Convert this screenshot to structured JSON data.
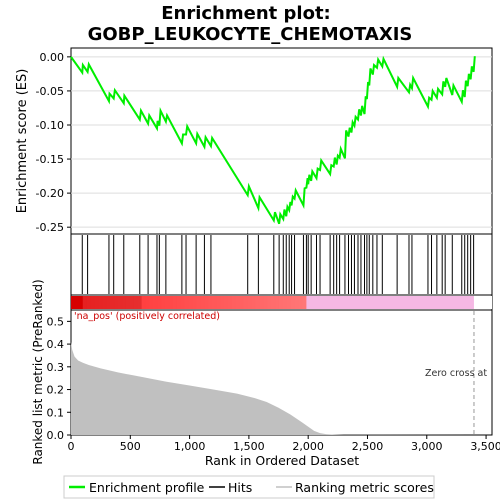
{
  "chart_data": {
    "type": "line",
    "title_line1": "Enrichment plot:",
    "title_line2": "GOBP_LEUKOCYTE_CHEMOTAXIS",
    "top_panel": {
      "ylabel": "Enrichment score (ES)",
      "ylim": [
        -0.26,
        0.013
      ],
      "yticks": [
        0.0,
        -0.05,
        -0.1,
        -0.15,
        -0.2,
        -0.25
      ],
      "ytick_labels": [
        "0.00",
        "-0.05",
        "-0.10",
        "-0.15",
        "-0.20",
        "-0.25"
      ],
      "line_color": "#00ee00",
      "series": {
        "name": "Enrichment profile",
        "x": [
          0,
          95,
          100,
          140,
          150,
          320,
          325,
          360,
          370,
          445,
          450,
          580,
          590,
          650,
          660,
          725,
          730,
          745,
          755,
          800,
          810,
          935,
          945,
          970,
          980,
          1055,
          1065,
          1125,
          1135,
          1180,
          1190,
          1490,
          1500,
          1580,
          1590,
          1710,
          1720,
          1755,
          1765,
          1790,
          1800,
          1815,
          1825,
          1840,
          1850,
          1860,
          1870,
          1885,
          1895,
          1960,
          1970,
          1985,
          1995,
          2000,
          2010,
          2025,
          2035,
          2070,
          2080,
          2100,
          2110,
          2185,
          2195,
          2215,
          2225,
          2240,
          2250,
          2265,
          2275,
          2310,
          2320,
          2340,
          2350,
          2365,
          2375,
          2390,
          2400,
          2420,
          2430,
          2445,
          2455,
          2475,
          2485,
          2495,
          2505,
          2515,
          2525,
          2545,
          2555,
          2580,
          2590,
          2625,
          2635,
          2750,
          2760,
          2850,
          2860,
          2875,
          2885,
          3010,
          3020,
          3040,
          3050,
          3085,
          3095,
          3130,
          3140,
          3155,
          3165,
          3215,
          3225,
          3295,
          3305,
          3320,
          3330,
          3345,
          3355,
          3370,
          3380,
          3395,
          3405
        ],
        "y": [
          0.0,
          -0.023,
          -0.012,
          -0.022,
          -0.011,
          -0.065,
          -0.054,
          -0.061,
          -0.049,
          -0.068,
          -0.057,
          -0.092,
          -0.079,
          -0.098,
          -0.086,
          -0.105,
          -0.094,
          -0.101,
          -0.079,
          -0.095,
          -0.086,
          -0.127,
          -0.114,
          -0.114,
          -0.102,
          -0.127,
          -0.113,
          -0.132,
          -0.118,
          -0.131,
          -0.119,
          -0.203,
          -0.19,
          -0.222,
          -0.206,
          -0.24,
          -0.228,
          -0.245,
          -0.231,
          -0.238,
          -0.224,
          -0.234,
          -0.22,
          -0.225,
          -0.213,
          -0.218,
          -0.205,
          -0.208,
          -0.196,
          -0.218,
          -0.193,
          -0.192,
          -0.178,
          -0.187,
          -0.173,
          -0.182,
          -0.168,
          -0.178,
          -0.164,
          -0.166,
          -0.152,
          -0.172,
          -0.159,
          -0.161,
          -0.148,
          -0.158,
          -0.145,
          -0.148,
          -0.135,
          -0.149,
          -0.108,
          -0.117,
          -0.104,
          -0.111,
          -0.096,
          -0.101,
          -0.088,
          -0.092,
          -0.077,
          -0.086,
          -0.072,
          -0.084,
          -0.058,
          -0.062,
          -0.037,
          -0.042,
          -0.017,
          -0.026,
          -0.012,
          -0.016,
          -0.004,
          -0.014,
          -0.003,
          -0.044,
          -0.031,
          -0.052,
          -0.041,
          -0.046,
          -0.031,
          -0.073,
          -0.06,
          -0.063,
          -0.05,
          -0.06,
          -0.047,
          -0.055,
          -0.036,
          -0.044,
          -0.031,
          -0.056,
          -0.042,
          -0.066,
          -0.049,
          -0.059,
          -0.035,
          -0.043,
          -0.025,
          -0.033,
          -0.014,
          -0.022,
          0.001
        ]
      }
    },
    "hits": [
      95,
      140,
      320,
      360,
      445,
      580,
      650,
      725,
      745,
      800,
      935,
      970,
      1055,
      1125,
      1180,
      1490,
      1580,
      1710,
      1755,
      1790,
      1815,
      1840,
      1860,
      1885,
      1960,
      1985,
      2000,
      2025,
      2070,
      2100,
      2185,
      2215,
      2240,
      2265,
      2310,
      2340,
      2365,
      2390,
      2420,
      2445,
      2475,
      2495,
      2515,
      2545,
      2580,
      2625,
      2750,
      2850,
      2875,
      3010,
      3040,
      3085,
      3130,
      3155,
      3215,
      3295,
      3320,
      3345,
      3370,
      3395
    ],
    "bottom_panel": {
      "xlabel": "Rank in Ordered Dataset",
      "ylabel": "Ranked list metric (PreRanked)",
      "ylim": [
        0,
        0.55
      ],
      "yticks": [
        0.0,
        0.1,
        0.2,
        0.3,
        0.4,
        0.5
      ],
      "ytick_labels": [
        "0.0",
        "0.1",
        "0.2",
        "0.3",
        "0.4",
        "0.5"
      ],
      "xlim": [
        0,
        3550
      ],
      "xticks": [
        0,
        500,
        1000,
        1500,
        2000,
        2500,
        3000,
        3500
      ],
      "xtick_labels": [
        "0",
        "500",
        "1,000",
        "1,500",
        "2,000",
        "2,500",
        "3,000",
        "3,500"
      ],
      "fill_color": "#c0c0c0",
      "metric": {
        "x": [
          0,
          10,
          30,
          60,
          100,
          150,
          250,
          400,
          600,
          800,
          1000,
          1200,
          1400,
          1550,
          1650,
          1750,
          1850,
          1950,
          2050,
          2100,
          2150,
          2200,
          2300,
          3398
        ],
        "y": [
          0.41,
          0.375,
          0.345,
          0.328,
          0.318,
          0.308,
          0.293,
          0.275,
          0.255,
          0.235,
          0.218,
          0.2,
          0.182,
          0.162,
          0.145,
          0.12,
          0.09,
          0.055,
          0.018,
          0.008,
          0.004,
          0.002,
          0.0005,
          0.0
        ]
      },
      "pos_label": "'na_pos' (positively correlated)",
      "zero_cross_label": "Zero cross at",
      "zero_cross_x": 3398
    },
    "gradient_bar": {
      "split_x": 1985,
      "end_x": 3398
    },
    "legend": [
      {
        "label": "Enrichment profile",
        "color": "#00ee00"
      },
      {
        "label": "Hits",
        "color": "#000000"
      },
      {
        "label": "Ranking metric scores",
        "color": "#c0c0c0"
      }
    ]
  }
}
